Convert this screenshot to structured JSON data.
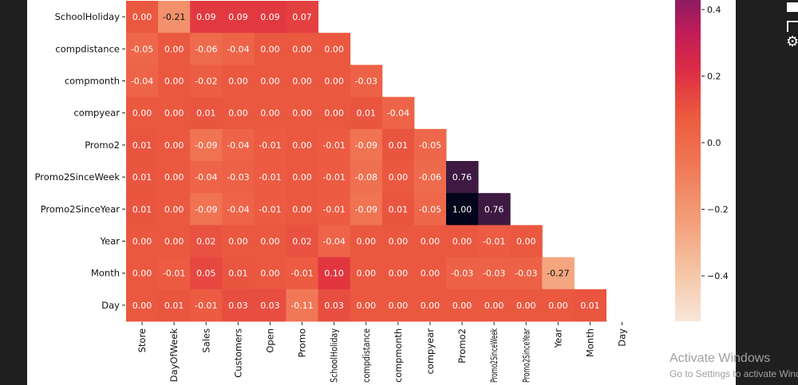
{
  "chart_data": {
    "type": "heatmap",
    "title": "",
    "row_labels": [
      "SchoolHoliday",
      "compdistance",
      "compmonth",
      "compyear",
      "Promo2",
      "Promo2SinceWeek",
      "Promo2SinceYear",
      "Year",
      "Month",
      "Day"
    ],
    "column_labels": [
      "Store",
      "DayOfWeek",
      "Sales",
      "Customers",
      "Open",
      "Promo",
      "SchoolHoliday",
      "compdistance",
      "compmonth",
      "compyear",
      "Promo2",
      "Promo2SinceWeek",
      "Promo2SinceYear",
      "Year",
      "Month",
      "Day"
    ],
    "values": [
      [
        0.0,
        -0.21,
        0.09,
        0.09,
        0.09,
        0.07
      ],
      [
        -0.05,
        0.0,
        -0.06,
        -0.04,
        0.0,
        -0.0,
        -0.0
      ],
      [
        -0.04,
        0.0,
        -0.02,
        -0.0,
        0.0,
        -0.0,
        -0.0,
        -0.03
      ],
      [
        -0.0,
        -0.0,
        0.01,
        0.0,
        0.0,
        0.0,
        0.0,
        0.01,
        -0.04
      ],
      [
        0.01,
        0.0,
        -0.09,
        -0.04,
        -0.01,
        -0.0,
        -0.01,
        -0.09,
        0.01,
        -0.05
      ],
      [
        0.01,
        0.0,
        -0.04,
        -0.03,
        -0.01,
        -0.0,
        -0.01,
        -0.08,
        -0.0,
        -0.06,
        0.76
      ],
      [
        0.01,
        0.0,
        -0.09,
        -0.04,
        -0.01,
        -0.0,
        -0.01,
        -0.09,
        0.01,
        -0.05,
        1.0,
        0.76
      ],
      [
        0.0,
        0.0,
        0.02,
        0.0,
        -0.0,
        0.02,
        -0.04,
        -0.0,
        -0.0,
        0.0,
        -0.0,
        -0.01,
        -0.0
      ],
      [
        0.0,
        -0.01,
        0.05,
        0.01,
        -0.0,
        -0.01,
        0.1,
        -0.0,
        -0.0,
        0.0,
        -0.03,
        -0.03,
        -0.03,
        -0.27
      ],
      [
        0.0,
        0.01,
        -0.01,
        0.03,
        0.03,
        -0.11,
        0.03,
        -0.0,
        -0.0,
        0.0,
        -0.0,
        -0.0,
        -0.0,
        -0.0,
        0.01
      ]
    ],
    "mask": "upper-triangle",
    "annotated": true,
    "colormap": "rocket_r",
    "colorbar": {
      "ticks": [
        "0.4",
        "0.2",
        "0.0",
        "−0.2",
        "−0.4"
      ],
      "tick_values": [
        0.4,
        0.2,
        0.0,
        -0.2,
        -0.4
      ],
      "range": [
        -0.54,
        1.0
      ]
    }
  },
  "watermark": {
    "line1": "Activate Windows",
    "line2": "Go to Settings to activate Windows."
  }
}
